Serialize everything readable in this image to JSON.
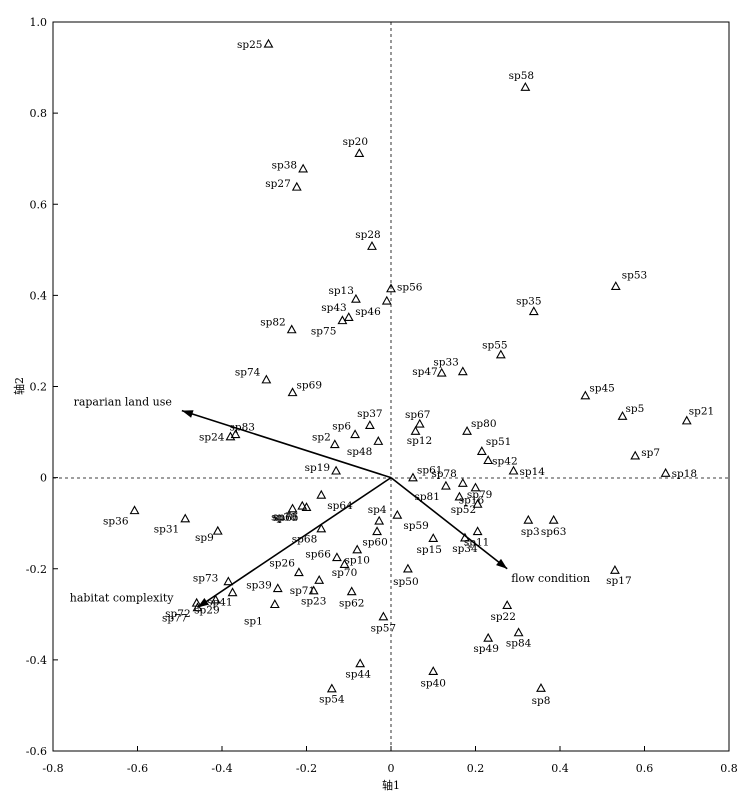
{
  "chart_data": {
    "type": "scatter",
    "xlabel": "轴1",
    "ylabel": "轴2",
    "xlim": [
      -0.8,
      0.8
    ],
    "ylim": [
      -0.6,
      1.0
    ],
    "xticks": [
      -0.8,
      -0.6,
      -0.4,
      -0.2,
      0,
      0.2,
      0.4,
      0.6,
      0.8
    ],
    "yticks": [
      -0.6,
      -0.4,
      -0.2,
      0,
      0.2,
      0.4,
      0.6,
      0.8,
      1.0
    ],
    "xtick_labels": [
      "-0.8",
      "-0.6",
      "-0.4",
      "-0.2",
      "0",
      "0.2",
      "0.4",
      "0.6",
      "0.8"
    ],
    "ytick_labels": [
      "-0.6",
      "-0.4",
      "-0.2",
      "0",
      "0.2",
      "0.4",
      "0.6",
      "0.8",
      "1.0"
    ],
    "grid": false,
    "zero_lines": "dashed",
    "marker": "open-triangle",
    "vectors": [
      {
        "name": "raparian land use",
        "x": -0.495,
        "y": 0.147
      },
      {
        "name": "habitat complexity",
        "x": -0.458,
        "y": -0.285
      },
      {
        "name": "flow condition",
        "x": 0.275,
        "y": -0.2
      }
    ],
    "points": [
      {
        "label": "sp1",
        "x": -0.275,
        "y": -0.278
      },
      {
        "label": "sp2",
        "x": -0.133,
        "y": 0.073
      },
      {
        "label": "sp3",
        "x": 0.325,
        "y": -0.093
      },
      {
        "label": "sp4",
        "x": -0.028,
        "y": -0.095
      },
      {
        "label": "sp5",
        "x": 0.548,
        "y": 0.135
      },
      {
        "label": "sp6",
        "x": -0.085,
        "y": 0.095
      },
      {
        "label": "sp7",
        "x": 0.578,
        "y": 0.048
      },
      {
        "label": "sp8",
        "x": 0.355,
        "y": -0.462
      },
      {
        "label": "sp9",
        "x": -0.41,
        "y": -0.117
      },
      {
        "label": "sp10",
        "x": -0.08,
        "y": -0.158
      },
      {
        "label": "sp11",
        "x": 0.205,
        "y": -0.118
      },
      {
        "label": "sp12",
        "x": 0.058,
        "y": 0.102
      },
      {
        "label": "sp13",
        "x": -0.083,
        "y": 0.392
      },
      {
        "label": "sp14",
        "x": 0.29,
        "y": 0.015
      },
      {
        "label": "sp15",
        "x": 0.1,
        "y": -0.133
      },
      {
        "label": "sp16",
        "x": 0.2,
        "y": -0.022
      },
      {
        "label": "sp17",
        "x": 0.53,
        "y": -0.203
      },
      {
        "label": "sp18",
        "x": 0.65,
        "y": 0.01
      },
      {
        "label": "sp19",
        "x": -0.13,
        "y": 0.015
      },
      {
        "label": "sp20",
        "x": -0.075,
        "y": 0.712
      },
      {
        "label": "sp21",
        "x": 0.7,
        "y": 0.125
      },
      {
        "label": "sp22",
        "x": 0.275,
        "y": -0.28
      },
      {
        "label": "sp23",
        "x": -0.183,
        "y": -0.248
      },
      {
        "label": "sp24",
        "x": -0.38,
        "y": 0.09
      },
      {
        "label": "sp25",
        "x": -0.29,
        "y": 0.952
      },
      {
        "label": "sp26",
        "x": -0.218,
        "y": -0.208
      },
      {
        "label": "sp27",
        "x": -0.223,
        "y": 0.638
      },
      {
        "label": "sp28",
        "x": -0.045,
        "y": 0.508
      },
      {
        "label": "sp29",
        "x": -0.415,
        "y": -0.268
      },
      {
        "label": "sp30",
        "x": -0.233,
        "y": -0.068
      },
      {
        "label": "sp31",
        "x": -0.487,
        "y": -0.09
      },
      {
        "label": "sp33",
        "x": 0.17,
        "y": 0.233
      },
      {
        "label": "sp34",
        "x": 0.175,
        "y": -0.132
      },
      {
        "label": "sp35",
        "x": 0.338,
        "y": 0.365
      },
      {
        "label": "sp36",
        "x": -0.607,
        "y": -0.072
      },
      {
        "label": "sp37",
        "x": -0.05,
        "y": 0.115
      },
      {
        "label": "sp38",
        "x": -0.208,
        "y": 0.678
      },
      {
        "label": "sp39",
        "x": -0.268,
        "y": -0.243
      },
      {
        "label": "sp40",
        "x": 0.1,
        "y": -0.425
      },
      {
        "label": "sp41",
        "x": -0.375,
        "y": -0.252
      },
      {
        "label": "sp42",
        "x": 0.23,
        "y": 0.038
      },
      {
        "label": "sp43",
        "x": -0.1,
        "y": 0.352
      },
      {
        "label": "sp44",
        "x": -0.073,
        "y": -0.408
      },
      {
        "label": "sp45",
        "x": 0.46,
        "y": 0.18
      },
      {
        "label": "sp46",
        "x": -0.01,
        "y": 0.388
      },
      {
        "label": "sp47",
        "x": 0.12,
        "y": 0.23
      },
      {
        "label": "sp48",
        "x": -0.03,
        "y": 0.08
      },
      {
        "label": "sp49",
        "x": 0.23,
        "y": -0.352
      },
      {
        "label": "sp50",
        "x": 0.04,
        "y": -0.2
      },
      {
        "label": "sp51",
        "x": 0.215,
        "y": 0.058
      },
      {
        "label": "sp52",
        "x": 0.162,
        "y": -0.042
      },
      {
        "label": "sp53",
        "x": 0.532,
        "y": 0.42
      },
      {
        "label": "sp54",
        "x": -0.14,
        "y": -0.463
      },
      {
        "label": "sp55",
        "x": 0.26,
        "y": 0.27
      },
      {
        "label": "sp56",
        "x": 0.0,
        "y": 0.415
      },
      {
        "label": "sp57",
        "x": -0.018,
        "y": -0.305
      },
      {
        "label": "sp58",
        "x": 0.318,
        "y": 0.857
      },
      {
        "label": "sp59",
        "x": 0.015,
        "y": -0.082
      },
      {
        "label": "sp60",
        "x": -0.033,
        "y": -0.118
      },
      {
        "label": "sp61",
        "x": 0.052,
        "y": 0.0
      },
      {
        "label": "sp62",
        "x": -0.093,
        "y": -0.25
      },
      {
        "label": "sp63",
        "x": 0.385,
        "y": -0.093
      },
      {
        "label": "sp64",
        "x": -0.165,
        "y": -0.038
      },
      {
        "label": "sp65",
        "x": -0.2,
        "y": -0.065
      },
      {
        "label": "sp66",
        "x": -0.128,
        "y": -0.175
      },
      {
        "label": "sp67",
        "x": 0.068,
        "y": 0.118
      },
      {
        "label": "sp68",
        "x": -0.165,
        "y": -0.112
      },
      {
        "label": "sp69",
        "x": -0.233,
        "y": 0.187
      },
      {
        "label": "sp70",
        "x": -0.11,
        "y": -0.19
      },
      {
        "label": "sp71",
        "x": -0.17,
        "y": -0.225
      },
      {
        "label": "sp72",
        "x": -0.46,
        "y": -0.275
      },
      {
        "label": "sp73",
        "x": -0.385,
        "y": -0.228
      },
      {
        "label": "sp74",
        "x": -0.295,
        "y": 0.215
      },
      {
        "label": "sp75",
        "x": -0.115,
        "y": 0.345
      },
      {
        "label": "sp76",
        "x": -0.21,
        "y": -0.062
      },
      {
        "label": "sp77",
        "x": -0.458,
        "y": -0.285
      },
      {
        "label": "sp78",
        "x": 0.17,
        "y": -0.012
      },
      {
        "label": "sp79",
        "x": 0.205,
        "y": -0.058
      },
      {
        "label": "sp80",
        "x": 0.18,
        "y": 0.102
      },
      {
        "label": "sp81",
        "x": 0.13,
        "y": -0.018
      },
      {
        "label": "sp82",
        "x": -0.235,
        "y": 0.325
      },
      {
        "label": "sp83",
        "x": -0.368,
        "y": 0.095
      },
      {
        "label": "sp84",
        "x": 0.302,
        "y": -0.34
      }
    ]
  }
}
